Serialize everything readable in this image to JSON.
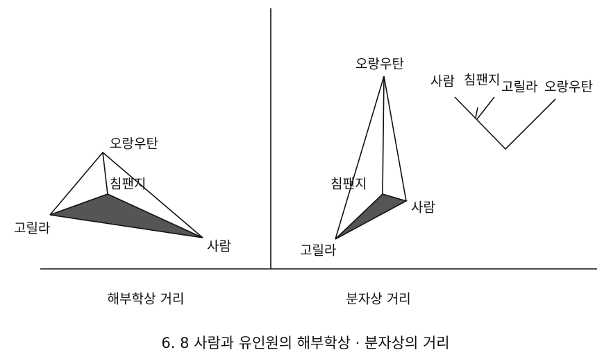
{
  "anatomical": {
    "labels": {
      "orangutan": "오랑우탄",
      "chimpanzee": "침팬지",
      "gorilla": "고릴라",
      "human": "사람"
    },
    "caption": "해부학상 거리"
  },
  "molecular": {
    "labels": {
      "orangutan": "오랑우탄",
      "chimpanzee": "침팬지",
      "human": "사람",
      "gorilla": "고릴라"
    },
    "caption": "분자상 거리"
  },
  "tree": {
    "leaves": [
      "사람",
      "침팬지",
      "고릴라",
      "오랑우탄"
    ]
  },
  "figure_caption": "6. 8  사람과 유인원의 해부학상 · 분자상의 거리"
}
